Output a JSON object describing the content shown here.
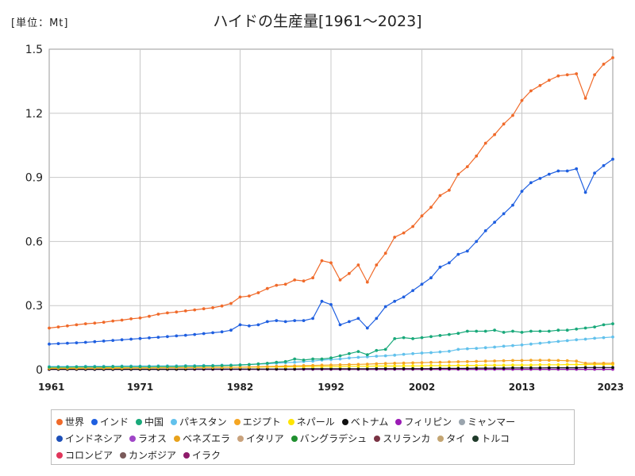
{
  "unit_label": "[単位：Mt]",
  "title": "ハイドの生産量[1961～2023]",
  "chart_data": {
    "type": "line",
    "x_start": 1961,
    "x_end": 2023,
    "ylim": [
      0,
      1.5
    ],
    "y_ticks": [
      "0",
      "0.3",
      "0.6",
      "0.9",
      "1.2",
      "1.5"
    ],
    "x_ticks": [
      "1961",
      "1971",
      "1982",
      "1992",
      "2002",
      "2013",
      "2023"
    ],
    "grid": true,
    "legend_position": "bottom",
    "series": [
      {
        "name": "世界",
        "color": "#f06a2a",
        "values": [
          0.195,
          0.2,
          0.205,
          0.21,
          0.215,
          0.218,
          0.222,
          0.228,
          0.232,
          0.238,
          0.242,
          0.25,
          0.26,
          0.266,
          0.27,
          0.275,
          0.28,
          0.285,
          0.29,
          0.298,
          0.31,
          0.34,
          0.345,
          0.36,
          0.38,
          0.395,
          0.4,
          0.42,
          0.415,
          0.43,
          0.51,
          0.5,
          0.42,
          0.45,
          0.49,
          0.41,
          0.49,
          0.545,
          0.62,
          0.64,
          0.67,
          0.72,
          0.76,
          0.815,
          0.84,
          0.915,
          0.95,
          1.0,
          1.06,
          1.1,
          1.15,
          1.19,
          1.26,
          1.305,
          1.33,
          1.355,
          1.375,
          1.38,
          1.385,
          1.27,
          1.38,
          1.43,
          1.46
        ]
      },
      {
        "name": "インド",
        "color": "#1f5fe0",
        "values": [
          0.12,
          0.122,
          0.124,
          0.126,
          0.128,
          0.131,
          0.134,
          0.137,
          0.14,
          0.143,
          0.146,
          0.149,
          0.152,
          0.155,
          0.158,
          0.161,
          0.165,
          0.169,
          0.173,
          0.177,
          0.185,
          0.21,
          0.205,
          0.21,
          0.225,
          0.23,
          0.225,
          0.23,
          0.23,
          0.24,
          0.32,
          0.305,
          0.21,
          0.225,
          0.24,
          0.195,
          0.24,
          0.295,
          0.32,
          0.34,
          0.37,
          0.4,
          0.43,
          0.48,
          0.5,
          0.54,
          0.555,
          0.6,
          0.65,
          0.69,
          0.73,
          0.77,
          0.835,
          0.875,
          0.895,
          0.915,
          0.93,
          0.93,
          0.94,
          0.83,
          0.92,
          0.955,
          0.985
        ]
      },
      {
        "name": "中国",
        "color": "#19a97a",
        "values": [
          0.012,
          0.012,
          0.012,
          0.013,
          0.013,
          0.013,
          0.013,
          0.014,
          0.014,
          0.014,
          0.014,
          0.014,
          0.015,
          0.015,
          0.015,
          0.016,
          0.016,
          0.017,
          0.018,
          0.019,
          0.02,
          0.022,
          0.024,
          0.027,
          0.03,
          0.035,
          0.038,
          0.05,
          0.045,
          0.05,
          0.05,
          0.055,
          0.065,
          0.075,
          0.085,
          0.07,
          0.09,
          0.095,
          0.145,
          0.15,
          0.145,
          0.15,
          0.155,
          0.16,
          0.165,
          0.17,
          0.18,
          0.18,
          0.18,
          0.185,
          0.175,
          0.18,
          0.175,
          0.18,
          0.18,
          0.18,
          0.185,
          0.185,
          0.19,
          0.195,
          0.2,
          0.21,
          0.215
        ]
      },
      {
        "name": "パキスタン",
        "color": "#62c1ec",
        "values": [
          0.015,
          0.015,
          0.015,
          0.015,
          0.016,
          0.016,
          0.016,
          0.016,
          0.017,
          0.017,
          0.017,
          0.017,
          0.018,
          0.018,
          0.018,
          0.019,
          0.019,
          0.02,
          0.02,
          0.021,
          0.022,
          0.023,
          0.024,
          0.026,
          0.028,
          0.03,
          0.033,
          0.035,
          0.038,
          0.04,
          0.045,
          0.048,
          0.05,
          0.055,
          0.058,
          0.06,
          0.063,
          0.065,
          0.068,
          0.072,
          0.075,
          0.078,
          0.08,
          0.083,
          0.086,
          0.095,
          0.098,
          0.1,
          0.103,
          0.106,
          0.11,
          0.113,
          0.116,
          0.12,
          0.124,
          0.128,
          0.132,
          0.136,
          0.14,
          0.143,
          0.147,
          0.15,
          0.153
        ]
      },
      {
        "name": "エジプト",
        "color": "#f5a623",
        "values": [
          0.006,
          0.006,
          0.006,
          0.006,
          0.007,
          0.007,
          0.007,
          0.007,
          0.007,
          0.008,
          0.008,
          0.008,
          0.008,
          0.009,
          0.009,
          0.009,
          0.01,
          0.01,
          0.011,
          0.011,
          0.012,
          0.012,
          0.013,
          0.014,
          0.015,
          0.016,
          0.017,
          0.018,
          0.019,
          0.02,
          0.021,
          0.022,
          0.023,
          0.024,
          0.025,
          0.026,
          0.028,
          0.029,
          0.03,
          0.031,
          0.032,
          0.033,
          0.034,
          0.035,
          0.036,
          0.037,
          0.038,
          0.039,
          0.04,
          0.041,
          0.042,
          0.043,
          0.043,
          0.044,
          0.044,
          0.044,
          0.043,
          0.042,
          0.04,
          0.03,
          0.03,
          0.03,
          0.03
        ]
      },
      {
        "name": "ネパール",
        "color": "#ffe500",
        "values": [
          0.008,
          0.008,
          0.008,
          0.008,
          0.008,
          0.008,
          0.009,
          0.009,
          0.009,
          0.009,
          0.009,
          0.009,
          0.01,
          0.01,
          0.01,
          0.01,
          0.01,
          0.011,
          0.011,
          0.011,
          0.011,
          0.012,
          0.012,
          0.012,
          0.013,
          0.013,
          0.013,
          0.014,
          0.014,
          0.014,
          0.015,
          0.015,
          0.015,
          0.016,
          0.016,
          0.016,
          0.017,
          0.017,
          0.017,
          0.018,
          0.018,
          0.018,
          0.019,
          0.019,
          0.019,
          0.02,
          0.02,
          0.02,
          0.021,
          0.021,
          0.021,
          0.022,
          0.022,
          0.022,
          0.023,
          0.023,
          0.023,
          0.024,
          0.024,
          0.024,
          0.025,
          0.025,
          0.025
        ]
      },
      {
        "name": "ベトナム",
        "color": "#111111",
        "values": [
          0.002,
          0.002,
          0.002,
          0.002,
          0.002,
          0.002,
          0.002,
          0.002,
          0.002,
          0.002,
          0.002,
          0.002,
          0.002,
          0.002,
          0.002,
          0.002,
          0.003,
          0.003,
          0.003,
          0.003,
          0.003,
          0.003,
          0.003,
          0.003,
          0.003,
          0.003,
          0.003,
          0.003,
          0.004,
          0.004,
          0.004,
          0.004,
          0.004,
          0.004,
          0.004,
          0.004,
          0.005,
          0.005,
          0.005,
          0.005,
          0.005,
          0.005,
          0.005,
          0.006,
          0.006,
          0.006,
          0.006,
          0.007,
          0.007,
          0.007,
          0.007,
          0.008,
          0.008,
          0.008,
          0.008,
          0.009,
          0.009,
          0.009,
          0.009,
          0.01,
          0.01,
          0.01,
          0.01
        ]
      },
      {
        "name": "フィリピン",
        "color": "#9b1bb5",
        "values": [
          0.002,
          0.002,
          0.002,
          0.002,
          0.002,
          0.002,
          0.002,
          0.002,
          0.002,
          0.002,
          0.002,
          0.002,
          0.002,
          0.002,
          0.002,
          0.002,
          0.002,
          0.002,
          0.002,
          0.002,
          0.002,
          0.002,
          0.002,
          0.002,
          0.002,
          0.002,
          0.002,
          0.002,
          0.002,
          0.002,
          0.002,
          0.002,
          0.002,
          0.002,
          0.002,
          0.002,
          0.002,
          0.002,
          0.002,
          0.002,
          0.002,
          0.002,
          0.002,
          0.002,
          0.002,
          0.002,
          0.002,
          0.002,
          0.002,
          0.002,
          0.002,
          0.002,
          0.002,
          0.002,
          0.002,
          0.002,
          0.002,
          0.002,
          0.002,
          0.002,
          0.002,
          0.002,
          0.002
        ]
      }
    ],
    "legend_only": [
      {
        "name": "ミャンマー",
        "color": "#9aa4ad"
      },
      {
        "name": "インドネシア",
        "color": "#1d4fb8"
      },
      {
        "name": "ラオス",
        "color": "#a046c7"
      },
      {
        "name": "ベネズエラ",
        "color": "#e8a21c"
      },
      {
        "name": "イタリア",
        "color": "#c9a27c"
      },
      {
        "name": "バングラデシュ",
        "color": "#1f8f2f"
      },
      {
        "name": "スリランカ",
        "color": "#7a3344"
      },
      {
        "name": "タイ",
        "color": "#c4a572"
      },
      {
        "name": "トルコ",
        "color": "#1f3b2a"
      },
      {
        "name": "コロンビア",
        "color": "#e0355b"
      },
      {
        "name": "カンボジア",
        "color": "#7a5a5a"
      },
      {
        "name": "イラク",
        "color": "#8e1a6a"
      }
    ]
  }
}
